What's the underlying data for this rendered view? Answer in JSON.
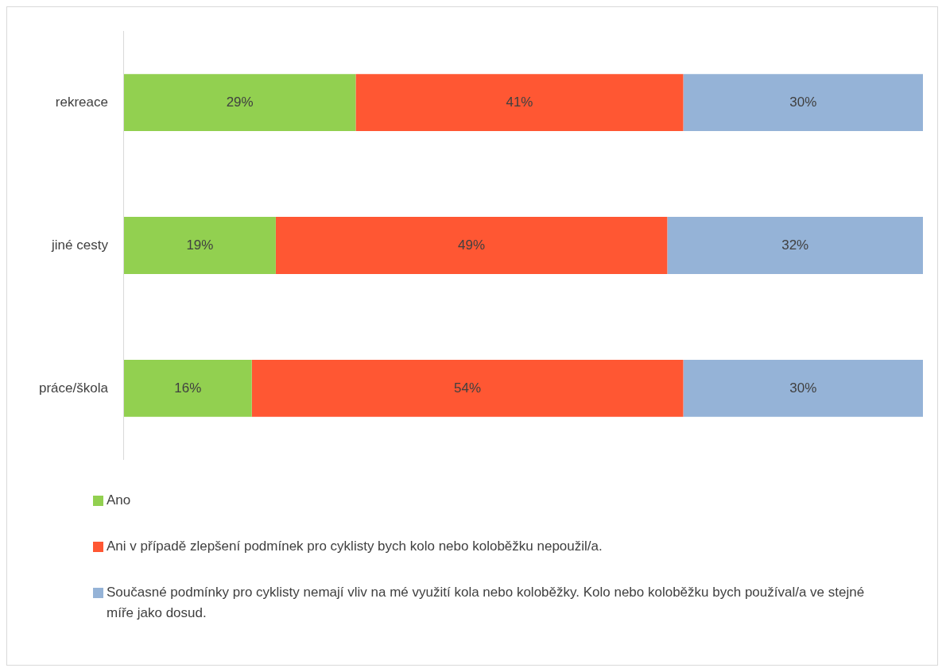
{
  "chart_data": {
    "type": "bar",
    "orientation": "horizontal",
    "stacked": true,
    "legend": "bottom",
    "categories": [
      "rekreace",
      "jiné cesty",
      "práce/škola"
    ],
    "series": [
      {
        "name": "Ano",
        "color": "#92d050",
        "values": [
          29,
          19,
          16
        ],
        "value_labels": [
          "29%",
          "19%",
          "16%"
        ]
      },
      {
        "name": "Ani v případě zlepšení podmínek pro cyklisty bych kolo nebo koloběžku nepoužil/a.",
        "color": "#ff5733",
        "values": [
          41,
          49,
          54
        ],
        "value_labels": [
          "41%",
          "49%",
          "54%"
        ]
      },
      {
        "name": "Současné podmínky pro cyklisty nemají vliv na mé využití kola nebo koloběžky. Kolo nebo koloběžku bych používal/a ve stejné míře jako dosud.",
        "color": "#95b3d7",
        "values": [
          30,
          32,
          30
        ],
        "value_labels": [
          "30%",
          "32%",
          "30%"
        ]
      }
    ]
  }
}
